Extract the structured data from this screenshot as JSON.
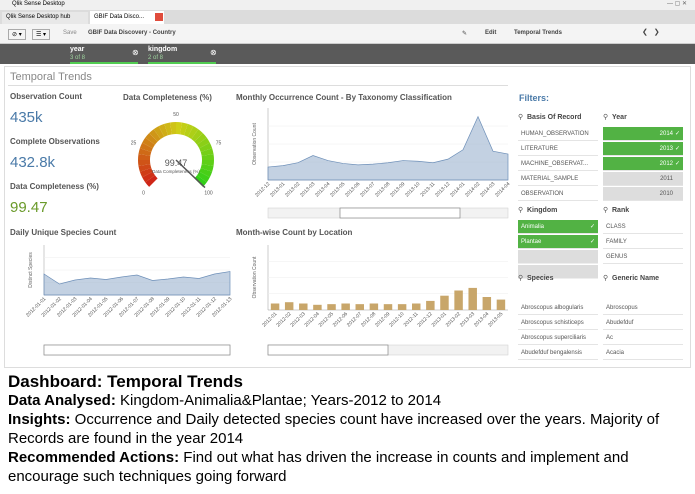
{
  "window": {
    "title": "Qlik Sense Desktop"
  },
  "tabs": [
    "Qlik Sense Desktop hub",
    "GBIF Data Disco..."
  ],
  "toolbar": {
    "save": "Save",
    "app": "GBIF Data Discovery - Country",
    "edit": "Edit",
    "sheet": "Temporal Trends"
  },
  "selections": [
    {
      "field": "year",
      "count": "3 of 8"
    },
    {
      "field": "kingdom",
      "count": "2 of 8"
    }
  ],
  "sheet_title": "Temporal Trends",
  "kpis": [
    {
      "title": "Observation Count",
      "value": "435k",
      "color": "#4a7aa8"
    },
    {
      "title": "Complete Observations",
      "value": "432.8k",
      "color": "#4a7aa8"
    },
    {
      "title": "Data Completeness (%)",
      "value": "99.47",
      "color": "#6a9a2a"
    }
  ],
  "gauge": {
    "title": "Data Completeness (%)",
    "value": 99.47,
    "label": "Data Completeness (%)",
    "lim": [
      0,
      100
    ],
    "ticks": [
      0,
      25,
      50,
      75,
      100
    ]
  },
  "monthly_chart": {
    "type": "area",
    "title": "Monthly Occurrence Count - By Taxonomy Classification",
    "y_label": "Observation Count",
    "color": "#9bb3cf",
    "ylim": [
      0,
      100
    ],
    "categories": [
      "2012-12",
      "2013-01",
      "2013-02",
      "2013-03",
      "2013-04",
      "2013-05",
      "2013-06",
      "2013-07",
      "2013-08",
      "2013-09",
      "2013-10",
      "2013-11",
      "2013-12",
      "2014-01",
      "2014-02",
      "2014-03",
      "2014-04"
    ],
    "values": [
      18,
      20,
      24,
      34,
      27,
      23,
      21,
      22,
      24,
      27,
      26,
      24,
      29,
      42,
      88,
      40,
      36
    ]
  },
  "daily_chart": {
    "type": "area",
    "title": "Daily Unique Species Count",
    "y_label": "Distinct Species",
    "color": "#9bb3cf",
    "ylim": [
      0,
      100
    ],
    "categories": [
      "2012-01-01",
      "2012-01-02",
      "2012-01-03",
      "2012-01-04",
      "2012-01-05",
      "2012-01-06",
      "2012-01-07",
      "2012-01-08",
      "2012-01-09",
      "2012-01-10",
      "2012-01-11",
      "2012-01-12",
      "2012-01-13"
    ],
    "values": [
      42,
      22,
      30,
      34,
      31,
      36,
      40,
      29,
      32,
      36,
      33,
      42,
      47
    ]
  },
  "location_chart": {
    "type": "bar",
    "title": "Month-wise Count by Location",
    "y_label": "Observation Count",
    "color": "#c8a66a",
    "ylim": [
      0,
      100
    ],
    "categories": [
      "2012-01",
      "2012-02",
      "2012-03",
      "2012-04",
      "2012-05",
      "2012-06",
      "2012-07",
      "2012-08",
      "2012-09",
      "2012-10",
      "2012-11",
      "2012-12",
      "2013-01",
      "2013-02",
      "2013-03",
      "2013-04",
      "2013-05"
    ],
    "values": [
      10,
      12,
      10,
      8,
      9,
      10,
      9,
      10,
      9,
      9,
      10,
      14,
      22,
      30,
      34,
      20,
      16
    ]
  },
  "filters": {
    "title": "Filters:",
    "lists": [
      {
        "title": "Basis Of Record",
        "items": [
          {
            "label": "HUMAN_OBSERVATION",
            "selected": false
          },
          {
            "label": "LITERATURE",
            "selected": false
          },
          {
            "label": "MACHINE_OBSERVAT...",
            "selected": false
          },
          {
            "label": "MATERIAL_SAMPLE",
            "selected": false
          },
          {
            "label": "OBSERVATION",
            "selected": false
          }
        ]
      },
      {
        "title": "Year",
        "items": [
          {
            "label": "2014",
            "selected": true
          },
          {
            "label": "2013",
            "selected": true
          },
          {
            "label": "2012",
            "selected": true
          },
          {
            "label": "2011",
            "selected": false
          },
          {
            "label": "2010",
            "selected": false
          }
        ]
      },
      {
        "title": "Kingdom",
        "items": [
          {
            "label": "Animalia",
            "selected": true
          },
          {
            "label": "Plantae",
            "selected": true
          }
        ]
      },
      {
        "title": "Rank",
        "items": [
          {
            "label": "CLASS",
            "selected": false
          },
          {
            "label": "FAMILY",
            "selected": false
          },
          {
            "label": "GENUS",
            "selected": false
          }
        ]
      },
      {
        "title": "Species",
        "items": [
          {
            "label": "Abroscopus albogularis",
            "selected": false
          },
          {
            "label": "Abroscopus schisticeps",
            "selected": false
          },
          {
            "label": "Abroscopus superciliaris",
            "selected": false
          },
          {
            "label": "Abudefduf bengalensis",
            "selected": false
          }
        ]
      },
      {
        "title": "Generic Name",
        "items": [
          {
            "label": "Abroscopus",
            "selected": false
          },
          {
            "label": "Abudefduf",
            "selected": false
          },
          {
            "label": "Ac",
            "selected": false
          },
          {
            "label": "Acacia",
            "selected": false
          }
        ]
      }
    ]
  },
  "caption": {
    "heading": "Dashboard: Temporal Trends",
    "lines": [
      {
        "label": "Data Analysed:",
        "text": " Kingdom-Animalia&Plantae; Years-2012 to 2014"
      },
      {
        "label": "Insights:",
        "text": " Occurrence and Daily detected species count have increased over the years. Majority of Records are found in the year 2014"
      },
      {
        "label": "Recommended Actions:",
        "text": " Find out what has driven the increase in counts and implement and encourage such techniques going forward"
      }
    ]
  }
}
